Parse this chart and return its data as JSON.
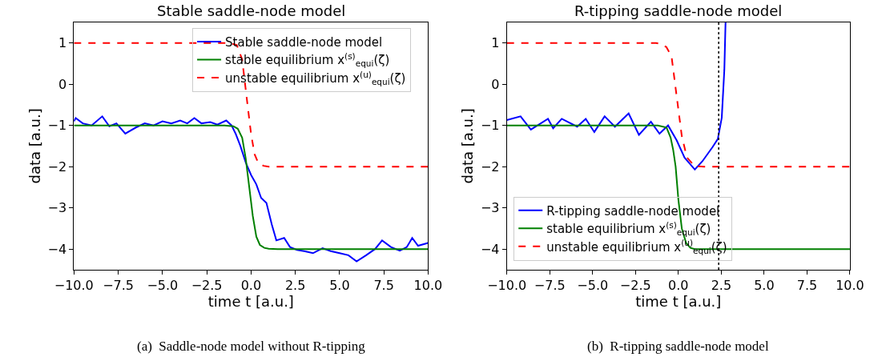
{
  "chart_data": [
    {
      "type": "line",
      "title": "Stable saddle-node model",
      "xlabel": "time t [a.u.]",
      "ylabel": "data [a.u.]",
      "xlim": [
        -10,
        10
      ],
      "ylim": [
        -4.5,
        1.5
      ],
      "xticks": [
        {
          "value": -10,
          "label": "−10.0"
        },
        {
          "value": -7.5,
          "label": "−7.5"
        },
        {
          "value": -5,
          "label": "−5.0"
        },
        {
          "value": -2.5,
          "label": "−2.5"
        },
        {
          "value": 0,
          "label": "0.0"
        },
        {
          "value": 2.5,
          "label": "2.5"
        },
        {
          "value": 5,
          "label": "5.0"
        },
        {
          "value": 7.5,
          "label": "7.5"
        },
        {
          "value": 10,
          "label": "10.0"
        }
      ],
      "yticks": [
        {
          "value": -4,
          "label": "−4"
        },
        {
          "value": -3,
          "label": "−3"
        },
        {
          "value": -2,
          "label": "−2"
        },
        {
          "value": -1,
          "label": "−1"
        },
        0,
        1
      ],
      "legend": "top right",
      "annotations": [
        "(a)  Saddle-node model without R-tipping"
      ],
      "series": [
        {
          "name": "Stable saddle-node model",
          "color": "#0000ff",
          "line_style": "solid",
          "x": [
            -10,
            -9.9,
            -9.5,
            -9.0,
            -8.4,
            -8.0,
            -7.6,
            -7.1,
            -6.5,
            -6.0,
            -5.5,
            -5.0,
            -4.5,
            -4.0,
            -3.6,
            -3.2,
            -2.8,
            -2.3,
            -1.9,
            -1.4,
            -1.1,
            -0.87,
            -0.6,
            -0.3,
            0.0,
            0.3,
            0.57,
            0.87,
            1.17,
            1.43,
            1.87,
            2.2,
            2.6,
            3.0,
            3.5,
            4.04,
            4.5,
            5.0,
            5.5,
            5.96,
            6.5,
            7.0,
            7.4,
            7.9,
            8.4,
            8.8,
            9.1,
            9.43,
            10
          ],
          "values": [
            -0.9,
            -0.82,
            -0.95,
            -1.0,
            -0.78,
            -1.02,
            -0.95,
            -1.2,
            -1.05,
            -0.95,
            -1.0,
            -0.9,
            -0.95,
            -0.88,
            -0.95,
            -0.82,
            -0.95,
            -0.92,
            -0.98,
            -0.88,
            -1.0,
            -1.2,
            -1.5,
            -1.9,
            -2.2,
            -2.43,
            -2.76,
            -2.88,
            -3.4,
            -3.79,
            -3.73,
            -3.95,
            -4.02,
            -4.05,
            -4.1,
            -3.98,
            -4.05,
            -4.1,
            -4.15,
            -4.3,
            -4.15,
            -4.0,
            -3.79,
            -3.95,
            -4.04,
            -3.95,
            -3.73,
            -3.92,
            -3.85
          ]
        },
        {
          "name": "stable equilibrium x$^{(s)}$$_{equi}$(ζ)",
          "color": "#008000",
          "line_style": "solid",
          "x": [
            -10,
            -1.5,
            -1.0,
            -0.75,
            -0.5,
            -0.3,
            -0.1,
            0.1,
            0.3,
            0.5,
            0.75,
            1.0,
            1.5,
            10
          ],
          "values": [
            -1,
            -1,
            -1.02,
            -1.08,
            -1.3,
            -1.8,
            -2.5,
            -3.2,
            -3.7,
            -3.9,
            -3.97,
            -3.99,
            -4,
            -4
          ]
        },
        {
          "name": "unstable equilibrium x$^{(u)}$$_{equi}$(ζ)",
          "color": "#ff0000",
          "line_style": "dashed",
          "x": [
            -10,
            -1.2,
            -0.8,
            -0.5,
            -0.2,
            0.0,
            0.2,
            0.4,
            0.7,
            1.0,
            1.5,
            10
          ],
          "values": [
            1,
            1,
            0.95,
            0.6,
            -0.49,
            -1.2,
            -1.7,
            -1.9,
            -1.98,
            -2,
            -2,
            -2
          ]
        }
      ]
    },
    {
      "type": "line",
      "title": "R-tipping saddle-node model",
      "xlabel": "time t [a.u.]",
      "ylabel": "data [a.u.]",
      "xlim": [
        -10,
        10
      ],
      "ylim": [
        -4.5,
        1.5
      ],
      "xticks": [
        {
          "value": -10,
          "label": "−10.0"
        },
        {
          "value": -7.5,
          "label": "−7.5"
        },
        {
          "value": -5,
          "label": "−5.0"
        },
        {
          "value": -2.5,
          "label": "−2.5"
        },
        {
          "value": 0,
          "label": "0.0"
        },
        {
          "value": 2.5,
          "label": "2.5"
        },
        {
          "value": 5,
          "label": "5.0"
        },
        {
          "value": 7.5,
          "label": "7.5"
        },
        {
          "value": 10,
          "label": "10.0"
        }
      ],
      "yticks": [
        {
          "value": -4,
          "label": "−4"
        },
        {
          "value": -3,
          "label": "−3"
        },
        {
          "value": -2,
          "label": "−2"
        },
        {
          "value": -1,
          "label": "−1"
        },
        0,
        1
      ],
      "legend": "bottom left",
      "ref_lines": [
        {
          "axis": "x",
          "value": 2.35,
          "color": "#000000",
          "line_style": "dotted"
        }
      ],
      "series": [
        {
          "name": "R-tipping saddle-node model",
          "color": "#0000ff",
          "line_style": "solid",
          "x": [
            -10,
            -9.2,
            -8.6,
            -7.6,
            -7.3,
            -6.8,
            -5.9,
            -5.4,
            -4.9,
            -4.3,
            -3.7,
            -2.9,
            -2.3,
            -1.6,
            -1.1,
            -0.6,
            -0.1,
            0.36,
            0.96,
            1.4,
            2.0,
            2.3,
            2.53,
            2.68,
            2.75
          ],
          "values": [
            -0.87,
            -0.78,
            -1.1,
            -0.84,
            -1.07,
            -0.84,
            -1.03,
            -0.84,
            -1.16,
            -0.78,
            -1.03,
            -0.71,
            -1.23,
            -0.91,
            -1.2,
            -1.0,
            -1.36,
            -1.78,
            -2.07,
            -1.87,
            -1.52,
            -1.33,
            -0.81,
            0.35,
            1.5
          ]
        },
        {
          "name": "stable equilibrium x$^{(s)}$$_{equi}$(ζ)",
          "color": "#008000",
          "line_style": "solid",
          "x": [
            -10,
            -1.2,
            -0.69,
            -0.45,
            -0.3,
            -0.16,
            0.0,
            0.2,
            0.45,
            0.7,
            0.96,
            10
          ],
          "values": [
            -1,
            -1,
            -1.05,
            -1.3,
            -1.6,
            -2.0,
            -2.8,
            -3.5,
            -3.85,
            -3.97,
            -4,
            -4
          ]
        },
        {
          "name": "unstable equilibrium x$^{(u)}$$_{equi}$(ζ)",
          "color": "#ff0000",
          "line_style": "dashed",
          "x": [
            -10,
            -1.3,
            -1.0,
            -0.7,
            -0.4,
            -0.1,
            0.2,
            0.5,
            0.96,
            1.5,
            10
          ],
          "values": [
            1,
            1,
            0.97,
            0.9,
            0.68,
            -0.29,
            -1.26,
            -1.78,
            -1.99,
            -2,
            -2
          ]
        }
      ],
      "annotations": [
        "(b)  R-tipping saddle-node model"
      ]
    }
  ]
}
